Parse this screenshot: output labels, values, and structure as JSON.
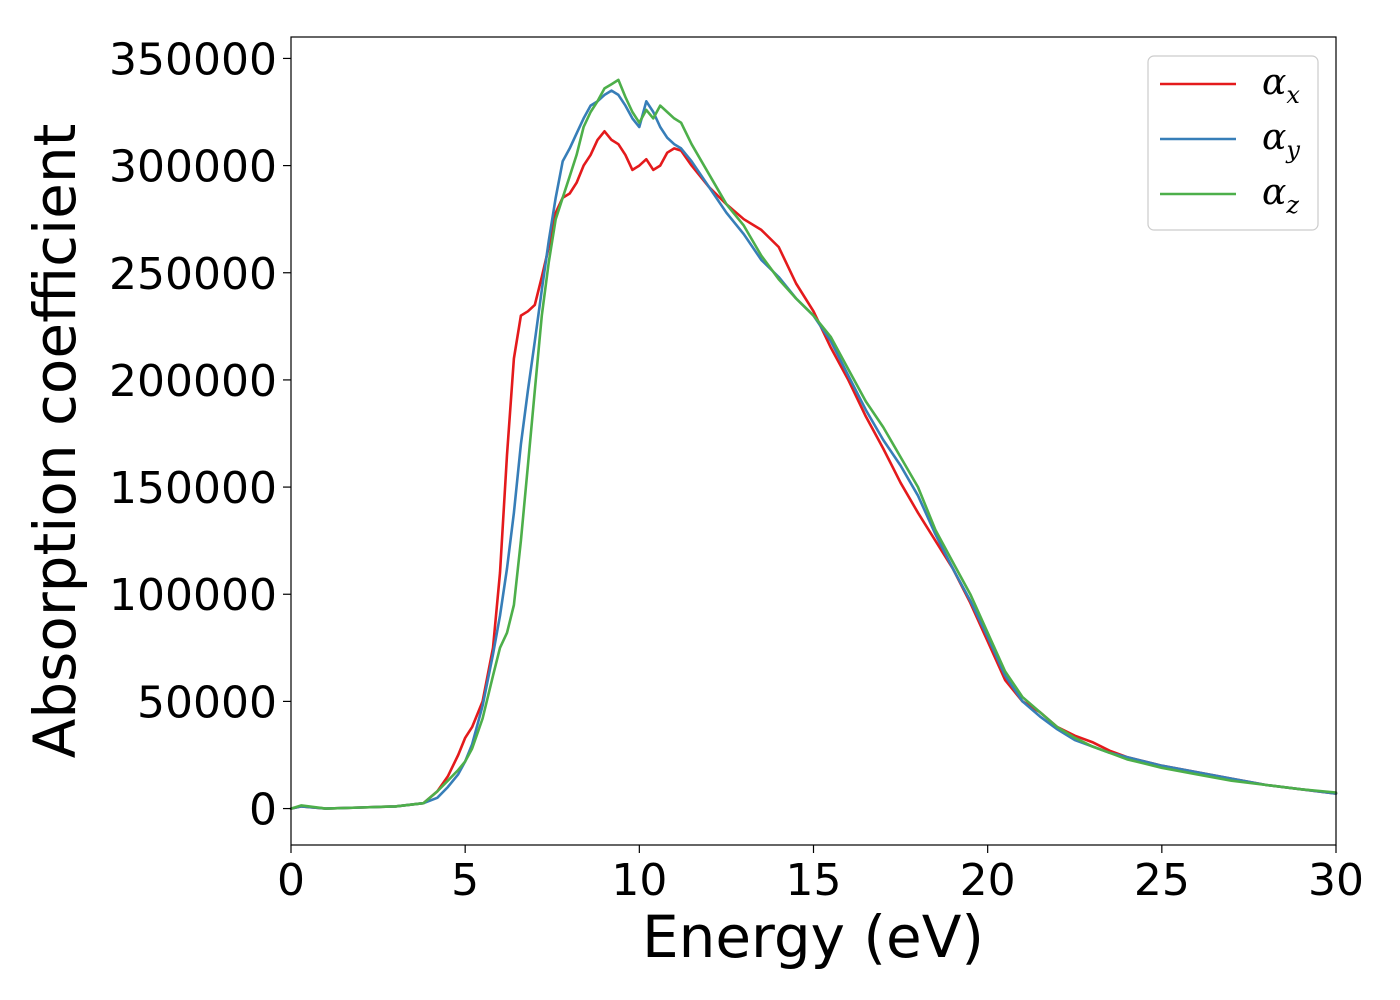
{
  "chart_data": {
    "type": "line",
    "title": "",
    "xlabel": "Energy (eV)",
    "ylabel": "Absorption coefficient",
    "xlim": [
      0,
      30
    ],
    "ylim": [
      -17000,
      360000
    ],
    "xticks": [
      0,
      5,
      10,
      15,
      20,
      25,
      30
    ],
    "xtick_labels": [
      "0",
      "5",
      "10",
      "15",
      "20",
      "25",
      "30"
    ],
    "yticks": [
      0,
      50000,
      100000,
      150000,
      200000,
      250000,
      300000,
      350000
    ],
    "ytick_labels": [
      "0",
      "50000",
      "100000",
      "150000",
      "200000",
      "250000",
      "300000",
      "350000"
    ],
    "grid": false,
    "legend_position": "top-right",
    "series": [
      {
        "name": "α_x",
        "symbol": "α",
        "subscript": "x",
        "color": "#e41a1c",
        "x": [
          0,
          0.3,
          1,
          2,
          3,
          3.8,
          4.2,
          4.5,
          4.8,
          5.0,
          5.2,
          5.5,
          5.8,
          6.0,
          6.2,
          6.4,
          6.6,
          6.8,
          7.0,
          7.2,
          7.4,
          7.6,
          7.8,
          8.0,
          8.2,
          8.4,
          8.6,
          8.8,
          9.0,
          9.2,
          9.4,
          9.6,
          9.8,
          10.0,
          10.2,
          10.4,
          10.6,
          10.8,
          11.0,
          11.2,
          11.5,
          12.0,
          12.5,
          13.0,
          13.5,
          14.0,
          14.5,
          15.0,
          15.5,
          16.0,
          16.5,
          17.0,
          17.5,
          18.0,
          18.5,
          19.0,
          19.5,
          20.0,
          20.5,
          21.0,
          21.5,
          22.0,
          22.5,
          23.0,
          23.5,
          24.0,
          25.0,
          26.0,
          27.0,
          28.0,
          29.0,
          30.0
        ],
        "values": [
          0,
          1000,
          0,
          500,
          1000,
          2500,
          8000,
          15000,
          25000,
          33000,
          38000,
          50000,
          75000,
          110000,
          165000,
          210000,
          230000,
          232000,
          235000,
          248000,
          262000,
          278000,
          285000,
          287000,
          292000,
          300000,
          305000,
          312000,
          316000,
          312000,
          310000,
          305000,
          298000,
          300000,
          303000,
          298000,
          300000,
          306000,
          308000,
          307000,
          300000,
          290000,
          282000,
          275000,
          270000,
          262000,
          245000,
          232000,
          215000,
          200000,
          183000,
          168000,
          152000,
          138000,
          125000,
          112000,
          96000,
          78000,
          60000,
          50000,
          45000,
          38000,
          34000,
          31000,
          27000,
          24000,
          20000,
          17000,
          14000,
          11000,
          9000,
          7000
        ]
      },
      {
        "name": "α_y",
        "symbol": "α",
        "subscript": "y",
        "color": "#377eb8",
        "x": [
          0,
          0.3,
          1,
          2,
          3,
          3.8,
          4.2,
          4.5,
          4.8,
          5.0,
          5.2,
          5.5,
          5.8,
          6.0,
          6.2,
          6.4,
          6.6,
          6.8,
          7.0,
          7.2,
          7.4,
          7.6,
          7.8,
          8.0,
          8.2,
          8.4,
          8.6,
          8.8,
          9.0,
          9.2,
          9.4,
          9.6,
          9.8,
          10.0,
          10.2,
          10.4,
          10.6,
          10.8,
          11.0,
          11.2,
          11.5,
          12.0,
          12.5,
          13.0,
          13.5,
          14.0,
          14.5,
          15.0,
          15.5,
          16.0,
          16.5,
          17.0,
          17.5,
          18.0,
          18.5,
          19.0,
          19.5,
          20.0,
          20.5,
          21.0,
          21.5,
          22.0,
          22.5,
          23.0,
          23.5,
          24.0,
          25.0,
          26.0,
          27.0,
          28.0,
          29.0,
          30.0
        ],
        "values": [
          0,
          1000,
          0,
          500,
          1000,
          2500,
          5000,
          10000,
          16000,
          22000,
          30000,
          48000,
          72000,
          90000,
          112000,
          138000,
          170000,
          195000,
          218000,
          242000,
          265000,
          285000,
          302000,
          308000,
          315000,
          322000,
          328000,
          330000,
          333000,
          335000,
          333000,
          328000,
          322000,
          318000,
          330000,
          325000,
          318000,
          313000,
          310000,
          308000,
          302000,
          290000,
          278000,
          268000,
          256000,
          248000,
          238000,
          230000,
          218000,
          202000,
          186000,
          172000,
          160000,
          146000,
          128000,
          112000,
          97000,
          80000,
          62000,
          50000,
          43000,
          37000,
          32000,
          29000,
          26000,
          24000,
          20000,
          17000,
          14000,
          11000,
          9000,
          7000
        ]
      },
      {
        "name": "α_z",
        "symbol": "α",
        "subscript": "z",
        "color": "#4daf4a",
        "x": [
          0,
          0.3,
          1,
          2,
          3,
          3.8,
          4.2,
          4.5,
          4.8,
          5.0,
          5.2,
          5.5,
          5.8,
          6.0,
          6.2,
          6.4,
          6.6,
          6.8,
          7.0,
          7.2,
          7.4,
          7.6,
          7.8,
          8.0,
          8.2,
          8.4,
          8.6,
          8.8,
          9.0,
          9.2,
          9.4,
          9.6,
          9.8,
          10.0,
          10.2,
          10.4,
          10.6,
          10.8,
          11.0,
          11.2,
          11.5,
          12.0,
          12.5,
          13.0,
          13.5,
          14.0,
          14.5,
          15.0,
          15.5,
          16.0,
          16.5,
          17.0,
          17.5,
          18.0,
          18.5,
          19.0,
          19.5,
          20.0,
          20.5,
          21.0,
          21.5,
          22.0,
          22.5,
          23.0,
          23.5,
          24.0,
          25.0,
          26.0,
          27.0,
          28.0,
          29.0,
          30.0
        ],
        "values": [
          0,
          1500,
          0,
          500,
          1000,
          2500,
          8000,
          13000,
          18000,
          22000,
          28000,
          42000,
          62000,
          75000,
          82000,
          95000,
          125000,
          160000,
          195000,
          230000,
          255000,
          275000,
          285000,
          295000,
          305000,
          318000,
          325000,
          330000,
          336000,
          338000,
          340000,
          332000,
          325000,
          320000,
          326000,
          322000,
          328000,
          325000,
          322000,
          320000,
          310000,
          296000,
          282000,
          272000,
          258000,
          247000,
          238000,
          230000,
          220000,
          205000,
          190000,
          178000,
          164000,
          150000,
          130000,
          115000,
          100000,
          82000,
          64000,
          52000,
          45000,
          38000,
          33000,
          29000,
          26000,
          23000,
          19000,
          16000,
          13000,
          11000,
          9000,
          7500
        ]
      }
    ]
  }
}
